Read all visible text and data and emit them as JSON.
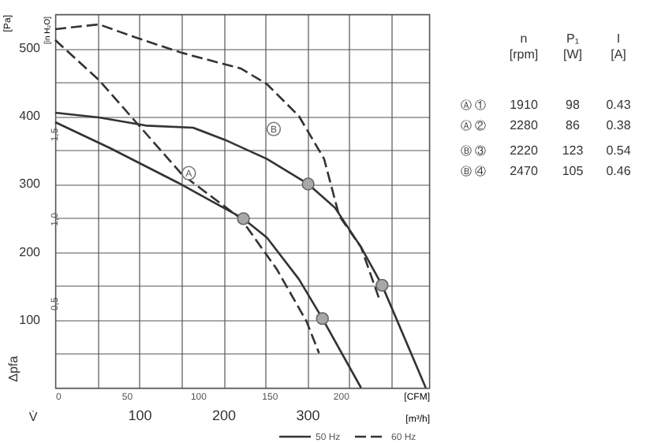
{
  "chart_data": [
    {
      "type": "line",
      "ylabel": "[Pa]",
      "y2label": "[in H₂O]",
      "xlabel": "[m³/h]",
      "x2label": "[CFM]",
      "xlim": [
        0,
        445
      ],
      "xticks": [
        {
          "value": 50,
          "label": null
        },
        100,
        {
          "value": 150,
          "label": null
        },
        200,
        {
          "value": 250,
          "label": null
        },
        300,
        {
          "value": 350,
          "label": null
        },
        {
          "value": 400,
          "label": null
        }
      ],
      "x2lim": [
        0,
        262
      ],
      "x2ticks": [
        0,
        50,
        100,
        150,
        200
      ],
      "ylim": [
        0,
        550
      ],
      "yticks": [
        {
          "value": 50,
          "label": null
        },
        100,
        {
          "value": 150,
          "label": null
        },
        200,
        {
          "value": 250,
          "label": null
        },
        300,
        {
          "value": 350,
          "label": null
        },
        400,
        {
          "value": 450,
          "label": null
        },
        500
      ],
      "y2lim": [
        0,
        2.208
      ],
      "y2ticks": [
        {
          "value": 0.5,
          "label": "0,5"
        },
        {
          "value": 1.0,
          "label": "1,0"
        },
        {
          "value": 1.5,
          "label": "1,5"
        }
      ],
      "grid": true,
      "legend": "bottom right",
      "series": [
        {
          "name": "50 Hz",
          "color": "#333333",
          "line_style": "solid",
          "x": [
            0,
            65,
            146,
            224,
            252,
            290,
            318,
            364
          ],
          "values": [
            391,
            353,
            302,
            249,
            221,
            160,
            102,
            0
          ]
        },
        {
          "name": "60 Hz",
          "color": "#333333",
          "line_style": "dashed",
          "x": [
            0,
            52,
            151,
            221,
            264,
            299,
            314
          ],
          "values": [
            512,
            453,
            314,
            249,
            174,
            98,
            51
          ]
        },
        {
          "color": "#333333",
          "line_style": "solid",
          "x": [
            0,
            52,
            108,
            164,
            202,
            252,
            301,
            333,
            364,
            389,
            441
          ],
          "values": [
            405,
            398,
            386,
            383,
            365,
            337,
            300,
            265,
            207,
            151,
            0
          ]
        },
        {
          "color": "#333333",
          "line_style": "dashed",
          "x": [
            0,
            52,
            95,
            151,
            221,
            252,
            290,
            320,
            338,
            364,
            385
          ],
          "values": [
            528,
            535,
            516,
            493,
            470,
            447,
            400,
            337,
            253,
            207,
            133
          ]
        },
        {
          "type": "scatter",
          "marker": "circle",
          "color": "#a8a8a8",
          "x": [
            224,
            301,
            318,
            389
          ],
          "values": [
            249,
            300,
            102,
            151
          ]
        }
      ],
      "annotations": [
        "Δpfa",
        "V̇",
        {
          "text": "A",
          "x": 159,
          "y": 316
        },
        {
          "text": "B",
          "x": 260,
          "y": 381
        }
      ]
    },
    {
      "type": "other",
      "categories": [
        "n\n[rpm]",
        "P₁\n[W]",
        "I\n[A]"
      ],
      "y_categories": [
        "Ⓐ ①",
        "Ⓐ ②",
        "Ⓑ ③",
        "Ⓑ ④"
      ],
      "cell_labels": [
        [
          "1910",
          "98",
          "0.43"
        ],
        [
          "2280",
          "86",
          "0.38"
        ],
        [
          "2220",
          "123",
          "0.54"
        ],
        [
          "2470",
          "105",
          "0.46"
        ]
      ]
    }
  ]
}
